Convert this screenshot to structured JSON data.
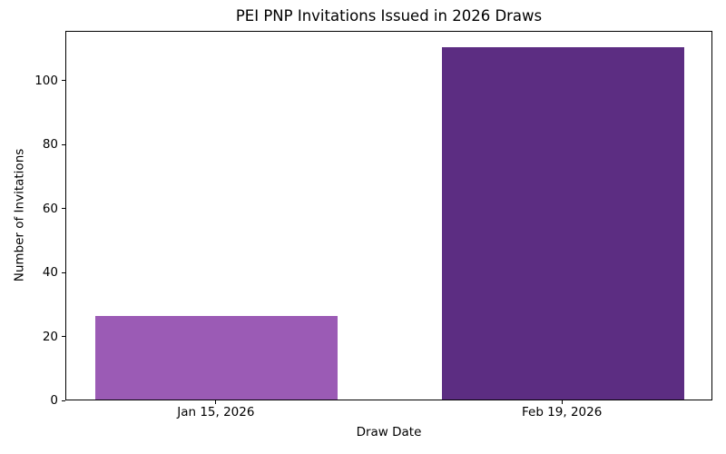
{
  "figure": {
    "background": "#ffffff",
    "spine_color": "#000000",
    "text_color": "#000000"
  },
  "chart_data": {
    "type": "bar",
    "title": "PEI PNP Invitations Issued in 2026 Draws",
    "xlabel": "Draw Date",
    "ylabel": "Number of Invitations",
    "categories": [
      "Jan 15, 2026",
      "Feb 19, 2026"
    ],
    "values": [
      26,
      110
    ],
    "bar_colors": [
      "#9b5bb5",
      "#5c2d82"
    ],
    "yticks": [
      0,
      20,
      40,
      60,
      80,
      100
    ],
    "ylim": [
      0,
      115.5
    ],
    "xlim": [
      -0.435,
      1.435
    ],
    "bar_width": 0.7,
    "grid": false,
    "legend": false
  }
}
